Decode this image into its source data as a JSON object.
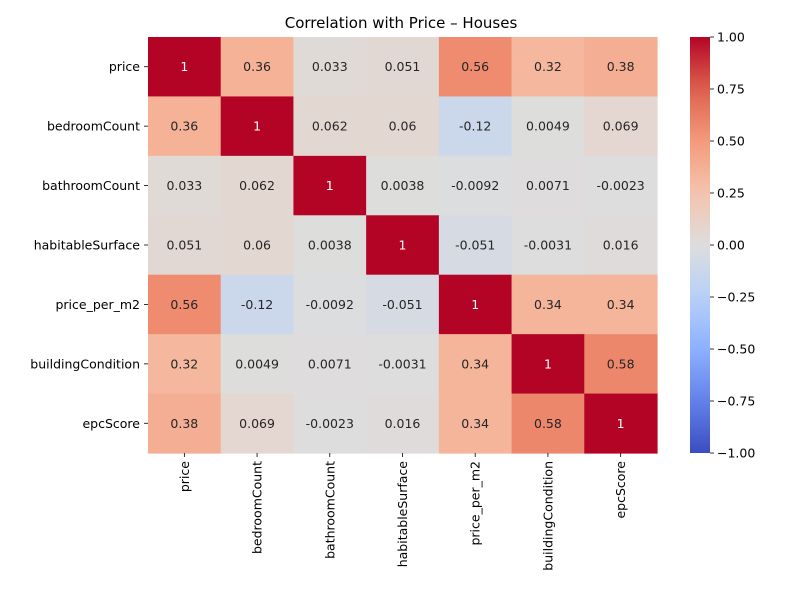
{
  "chart_data": {
    "type": "heatmap",
    "title": "Correlation with Price – Houses",
    "xlabel": "",
    "ylabel": "",
    "rows": [
      "price",
      "bedroomCount",
      "bathroomCount",
      "habitableSurface",
      "price_per_m2",
      "buildingCondition",
      "epcScore"
    ],
    "columns": [
      "price",
      "bedroomCount",
      "bathroomCount",
      "habitableSurface",
      "price_per_m2",
      "buildingCondition",
      "epcScore"
    ],
    "values": [
      [
        1,
        0.36,
        0.033,
        0.051,
        0.56,
        0.32,
        0.38
      ],
      [
        0.36,
        1,
        0.062,
        0.06,
        -0.12,
        0.0049,
        0.069
      ],
      [
        0.033,
        0.062,
        1,
        0.0038,
        -0.0092,
        0.0071,
        -0.0023
      ],
      [
        0.051,
        0.06,
        0.0038,
        1,
        -0.051,
        -0.0031,
        0.016
      ],
      [
        0.56,
        -0.12,
        -0.0092,
        -0.051,
        1,
        0.34,
        0.34
      ],
      [
        0.32,
        0.0049,
        0.0071,
        -0.0031,
        0.34,
        1,
        0.58
      ],
      [
        0.38,
        0.069,
        -0.0023,
        0.016,
        0.34,
        0.58,
        1
      ]
    ],
    "value_labels": [
      [
        "1",
        "0.36",
        "0.033",
        "0.051",
        "0.56",
        "0.32",
        "0.38"
      ],
      [
        "0.36",
        "1",
        "0.062",
        "0.06",
        "-0.12",
        "0.0049",
        "0.069"
      ],
      [
        "0.033",
        "0.062",
        "1",
        "0.0038",
        "-0.0092",
        "0.0071",
        "-0.0023"
      ],
      [
        "0.051",
        "0.06",
        "0.0038",
        "1",
        "-0.051",
        "-0.0031",
        "0.016"
      ],
      [
        "0.56",
        "-0.12",
        "-0.0092",
        "-0.051",
        "1",
        "0.34",
        "0.34"
      ],
      [
        "0.32",
        "0.0049",
        "0.0071",
        "-0.0031",
        "0.34",
        "1",
        "0.58"
      ],
      [
        "0.38",
        "0.069",
        "-0.0023",
        "0.016",
        "0.34",
        "0.58",
        "1"
      ]
    ],
    "colorscale": "coolwarm",
    "vmin": -1,
    "vmax": 1,
    "colorbar_ticks": [
      1.0,
      0.75,
      0.5,
      0.25,
      0.0,
      -0.25,
      -0.5,
      -0.75,
      -1.0
    ],
    "colorbar_tick_labels": [
      "1.00",
      "0.75",
      "0.50",
      "0.25",
      "0.00",
      "−0.25",
      "−0.50",
      "−0.75",
      "−1.00"
    ]
  }
}
